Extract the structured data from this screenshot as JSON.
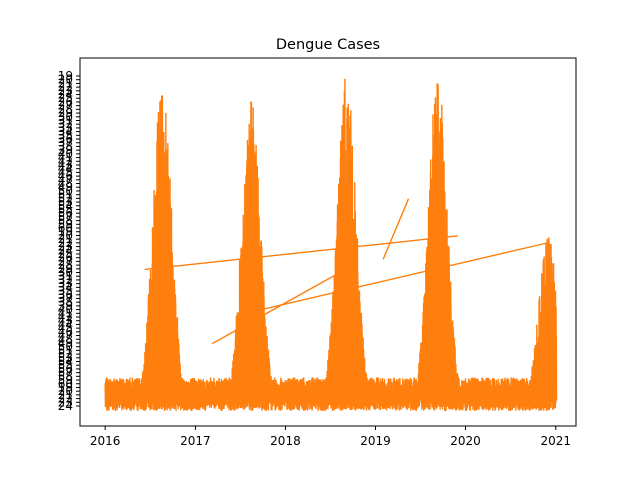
{
  "chart_data": {
    "type": "line",
    "title": "Dengue Cases",
    "xlabel": "",
    "ylabel": "",
    "x_ticks": [
      "2016",
      "2017",
      "2018",
      "2019",
      "2020",
      "2021"
    ],
    "xlim": [
      "2015-09-21",
      "2021-03-24"
    ],
    "y_tick_labels_visible": [
      "19",
      "20",
      "21",
      "22",
      "23",
      "24",
      "25",
      "26",
      "27",
      "28",
      "29",
      "30",
      "31",
      "32",
      "33",
      "34",
      "35",
      "36",
      "37",
      "38",
      "39",
      "40",
      "41",
      "42",
      "43",
      "44",
      "45",
      "46",
      "47",
      "48",
      "49",
      "50",
      "51",
      "52",
      "53",
      "54",
      "55",
      "56",
      "57",
      "58",
      "59",
      "60"
    ],
    "grid": false,
    "color": "#ff7f0e",
    "peaks": [
      {
        "date": "2016-08-20",
        "level": 0.98
      },
      {
        "date": "2017-08-15",
        "level": 0.93
      },
      {
        "date": "2018-09-05",
        "level": 1.0
      },
      {
        "date": "2019-09-10",
        "level": 1.0
      },
      {
        "date": "2020-12-01",
        "level": 0.52
      }
    ]
  }
}
